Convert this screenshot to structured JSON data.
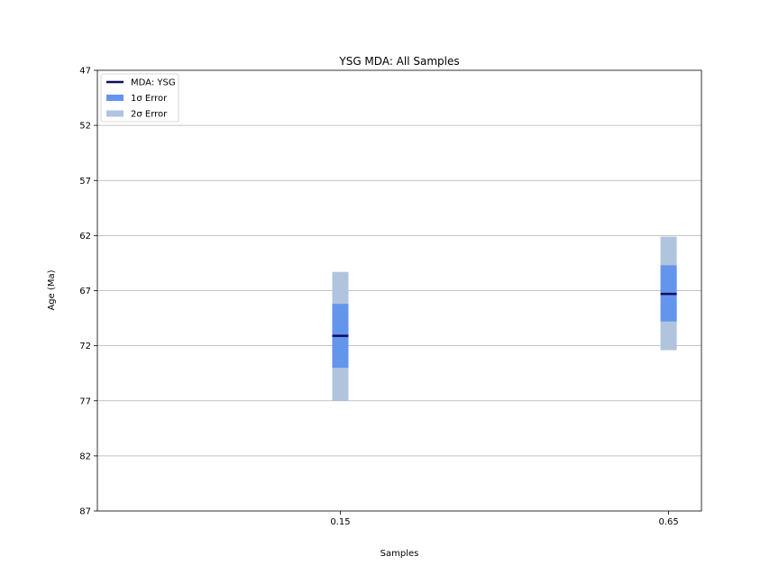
{
  "chart_data": {
    "type": "bar",
    "title": "YSG MDA: All Samples",
    "xlabel": "Samples",
    "ylabel": "Age (Ma)",
    "y_inverted": true,
    "ylim": [
      47,
      87
    ],
    "yticks": [
      47,
      52,
      57,
      62,
      67,
      72,
      77,
      82,
      87
    ],
    "xlim": [
      -0.22,
      0.7
    ],
    "xticks": [
      "0.15",
      "0.65"
    ],
    "grid": "horizontal",
    "legend_position": "top-left",
    "legend": [
      {
        "label": "MDA: YSG",
        "color": "#0f0f5a",
        "kind": "line"
      },
      {
        "label": "1σ Error",
        "color": "#6495ed",
        "kind": "patch"
      },
      {
        "label": "2σ Error",
        "color": "#b0c4de",
        "kind": "patch"
      }
    ],
    "samples": [
      {
        "x": 0.15,
        "mda": 71.1,
        "err_1s_low": 68.2,
        "err_1s_high": 74.0,
        "err_2s_low": 65.3,
        "err_2s_high": 77.0
      },
      {
        "x": 0.65,
        "mda": 67.3,
        "err_1s_low": 64.7,
        "err_1s_high": 69.8,
        "err_2s_low": 62.1,
        "err_2s_high": 72.4
      }
    ]
  }
}
